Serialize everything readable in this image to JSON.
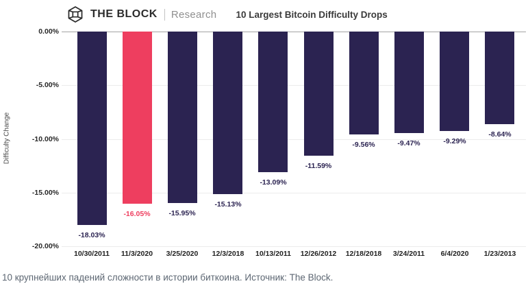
{
  "header": {
    "brand": "THE BLOCK",
    "brand_sub": "Research",
    "title": "10 Largest Bitcoin Difficulty Drops"
  },
  "chart_data": {
    "type": "bar",
    "title": "10 Largest Bitcoin Difficulty Drops",
    "xlabel": "",
    "ylabel": "Difficulty Change",
    "ylim": [
      -20,
      0
    ],
    "yticks": [
      "0.00%",
      "-5.00%",
      "-10.00%",
      "-15.00%",
      "-20.00%"
    ],
    "ytick_values": [
      0,
      -5,
      -10,
      -15,
      -20
    ],
    "grid": true,
    "legend": "none",
    "categories": [
      "10/30/2011",
      "11/3/2020",
      "3/25/2020",
      "12/3/2018",
      "10/13/2011",
      "12/26/2012",
      "12/18/2018",
      "3/24/2011",
      "6/4/2020",
      "1/23/2013"
    ],
    "values": [
      -18.03,
      -16.05,
      -15.95,
      -15.13,
      -13.09,
      -11.59,
      -9.56,
      -9.47,
      -9.29,
      -8.64
    ],
    "value_labels": [
      "-18.03%",
      "-16.05%",
      "-15.95%",
      "-15.13%",
      "-13.09%",
      "-11.59%",
      "-9.56%",
      "-9.47%",
      "-9.29%",
      "-8.64%"
    ],
    "bar_color": "#2b2351",
    "highlight_color": "#ee3e5f",
    "highlight_index": 1
  },
  "caption": "10 крупнейших падений сложности в истории биткоина. Источник: The Block."
}
